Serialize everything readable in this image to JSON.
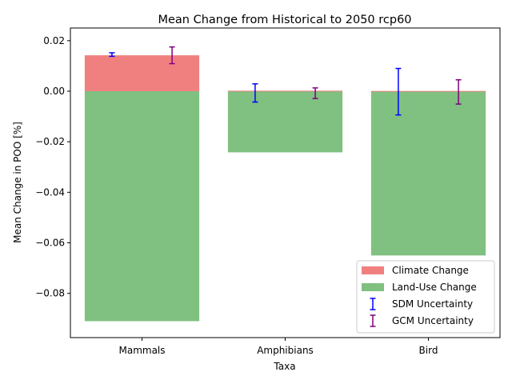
{
  "chart_data": {
    "type": "bar",
    "title": "Mean Change from Historical to 2050 rcp60",
    "xlabel": "Taxa",
    "ylabel": "Mean Change in POO [%]",
    "categories": [
      "Mammals",
      "Amphibians",
      "Bird"
    ],
    "ylim": [
      -0.0975,
      0.025
    ],
    "yticks": [
      -0.08,
      -0.06,
      -0.04,
      -0.02,
      0.0,
      0.02
    ],
    "ytick_labels": [
      "−0.08",
      "−0.06",
      "−0.04",
      "−0.02",
      "0.00",
      "0.02"
    ],
    "grid": false,
    "legend_position": "lower-right",
    "series": [
      {
        "name": "Climate Change",
        "kind": "bar",
        "color": "#f08080",
        "values": [
          0.0142,
          0.0002,
          0.0001
        ]
      },
      {
        "name": "Land-Use Change",
        "kind": "bar",
        "color": "#80c080",
        "values": [
          -0.091,
          -0.0242,
          -0.065
        ]
      },
      {
        "name": "SDM Uncertainty",
        "kind": "errorbar",
        "color": "#0000ff",
        "center": [
          0.0145,
          -0.0007,
          -0.0002
        ],
        "err": [
          0.0007,
          0.0036,
          0.0092
        ]
      },
      {
        "name": "GCM Uncertainty",
        "kind": "errorbar",
        "color": "#800080",
        "center": [
          0.0142,
          -0.0008,
          -0.0003
        ],
        "err": [
          0.0033,
          0.0021,
          0.0048
        ]
      }
    ]
  }
}
